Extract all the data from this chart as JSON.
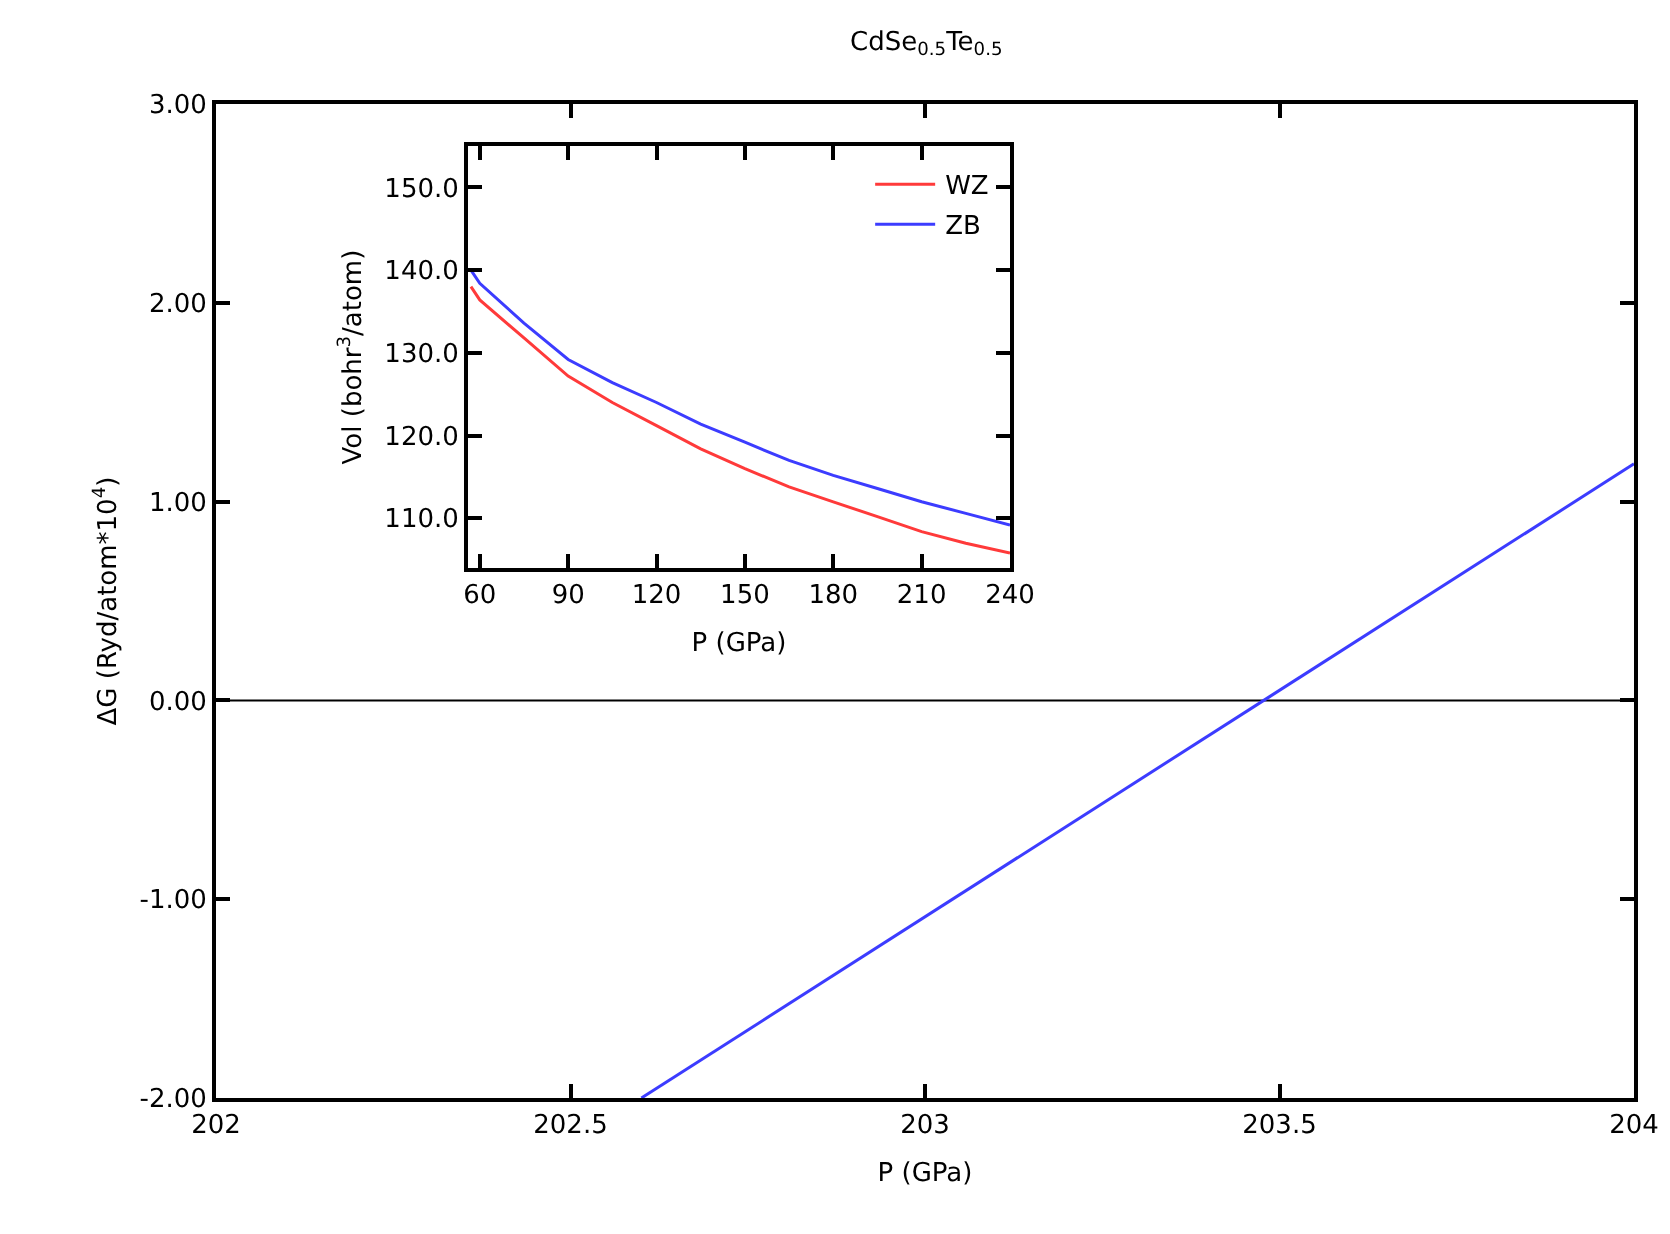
{
  "chart_data": [
    {
      "type": "line",
      "title": "CdSe$_{0.5}$Te$_{0.5}$",
      "xlabel": "P (GPa)",
      "ylabel": "ΔG (Ryd/atom*10$^{4}$)",
      "series": [
        {
          "color": "#3c3cff",
          "x": [
            202.6,
            204
          ],
          "values": [
            -2.0,
            1.19
          ]
        }
      ],
      "xlim": [
        202,
        204
      ],
      "xticks": [
        202,
        202.5,
        203,
        203.5,
        204
      ],
      "ylim": [
        -2,
        3
      ],
      "yticks": [
        {
          "value": -2,
          "label": "-2.00"
        },
        {
          "value": -1,
          "label": "-1.00"
        },
        {
          "value": 0,
          "label": "0.00"
        },
        {
          "value": 1,
          "label": "1.00"
        },
        {
          "value": 2,
          "label": "2.00"
        },
        {
          "value": 3,
          "label": "3.00"
        }
      ],
      "ref_lines": [
        {
          "axis": "y",
          "value": 0,
          "label": null,
          "color": "#000000"
        }
      ],
      "grid": false,
      "legend": false
    },
    {
      "type": "line",
      "xlabel": "P (GPa)",
      "ylabel": "Vol (bohr$^{3}$/atom)",
      "series": [
        {
          "name": "WZ",
          "color": "#ff3a3a",
          "x": [
            57,
            60,
            75,
            90,
            105,
            120,
            135,
            150,
            165,
            180,
            195,
            210,
            225,
            240
          ],
          "values": [
            138.0,
            136.4,
            131.8,
            127.2,
            124.0,
            121.2,
            118.4,
            116.0,
            113.8,
            112.0,
            110.2,
            108.4,
            107.0,
            105.8
          ]
        },
        {
          "name": "ZB",
          "color": "#3c3cff",
          "x": [
            57,
            60,
            75,
            90,
            105,
            120,
            135,
            150,
            165,
            180,
            195,
            210,
            225,
            240
          ],
          "values": [
            140.0,
            138.4,
            133.6,
            129.2,
            126.4,
            124.0,
            121.4,
            119.2,
            117.0,
            115.2,
            113.6,
            112.0,
            110.6,
            109.2
          ]
        }
      ],
      "xlim": [
        56,
        240
      ],
      "xticks": [
        60,
        90,
        120,
        150,
        180,
        210,
        240
      ],
      "ylim": [
        104,
        155
      ],
      "yticks": [
        {
          "value": 110,
          "label": "110.0"
        },
        {
          "value": 120,
          "label": "120.0"
        },
        {
          "value": 130,
          "label": "130.0"
        },
        {
          "value": 140,
          "label": "140.0"
        },
        {
          "value": 150,
          "label": "150.0"
        }
      ],
      "grid": false,
      "legend": "top right"
    }
  ]
}
